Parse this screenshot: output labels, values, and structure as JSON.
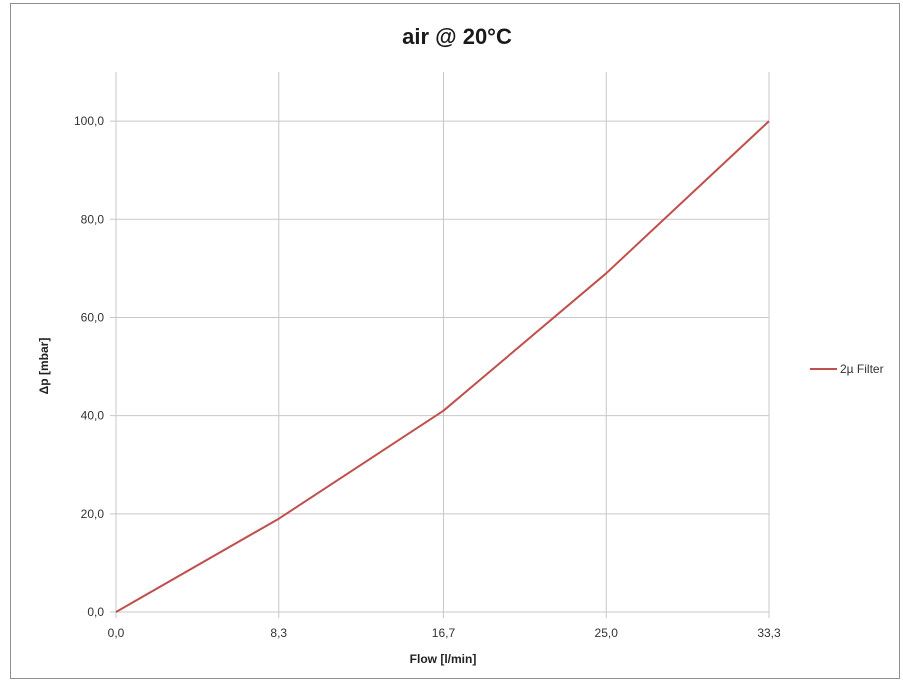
{
  "chart_data": {
    "type": "line",
    "title": "air @ 20°C",
    "xlabel": "Flow [l/min]",
    "ylabel": "Δp [mbar]",
    "x_ticks": [
      "0,0",
      "8,3",
      "16,7",
      "25,0",
      "33,3"
    ],
    "y_ticks": [
      "0,0",
      "20,0",
      "40,0",
      "60,0",
      "80,0",
      "100,0"
    ],
    "xlim": [
      0,
      33.3
    ],
    "ylim": [
      0,
      110
    ],
    "grid": true,
    "legend_position": "right",
    "colors": {
      "series": "#c0504d",
      "grid": "#c8c8c8"
    },
    "series": [
      {
        "name": "2µ Filter",
        "x": [
          0,
          8.3,
          16.7,
          25.0,
          33.3
        ],
        "y": [
          0,
          19,
          41,
          69,
          100
        ]
      }
    ]
  }
}
